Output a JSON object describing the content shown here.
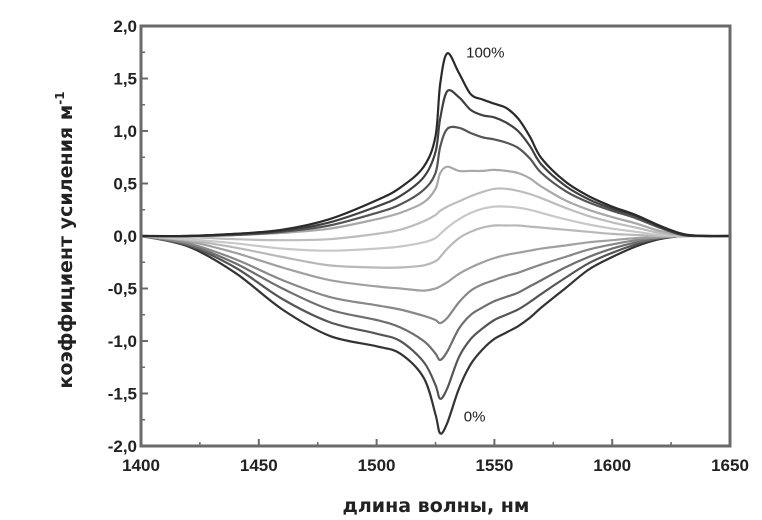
{
  "chart_data": {
    "type": "line",
    "xlabel": "длина волны,  нм",
    "ylabel": "коэффициент  усиления  м",
    "ylabel_sup": "-1",
    "xlim": [
      1400,
      1650
    ],
    "ylim": [
      -2.0,
      2.0
    ],
    "x_ticks": [
      1400,
      1450,
      1500,
      1550,
      1600,
      1650
    ],
    "y_ticks": [
      2.0,
      1.5,
      1.0,
      0.5,
      0.0,
      -0.5,
      -1.0,
      -1.5,
      -2.0
    ],
    "x_tick_labels": [
      "1400",
      "1450",
      "1500",
      "1550",
      "1600",
      "1650"
    ],
    "y_tick_labels": [
      "2,0",
      "1,5",
      "1,0",
      "0,5",
      "0,0",
      "-0,5",
      "-1,0",
      "-1,5",
      "-2,0"
    ],
    "grid": false,
    "annotations": [
      {
        "text": "100%",
        "x": 1538,
        "y": 1.75
      },
      {
        "text": "0%",
        "x": 1537,
        "y": -1.72
      }
    ],
    "x": [
      1400,
      1420,
      1440,
      1460,
      1480,
      1500,
      1510,
      1520,
      1525,
      1527,
      1530,
      1535,
      1540,
      1545,
      1550,
      1555,
      1560,
      1565,
      1570,
      1580,
      1590,
      1600,
      1610,
      1620,
      1630,
      1640,
      1650
    ],
    "series": [
      {
        "color": "#333333",
        "values": [
          0.0,
          -0.1,
          -0.35,
          -0.7,
          -0.95,
          -1.05,
          -1.12,
          -1.35,
          -1.7,
          -1.88,
          -1.78,
          -1.45,
          -1.22,
          -1.08,
          -0.98,
          -0.92,
          -0.86,
          -0.78,
          -0.68,
          -0.5,
          -0.32,
          -0.2,
          -0.1,
          -0.03,
          0.0,
          0.0,
          0.0
        ]
      },
      {
        "color": "#555555",
        "values": [
          0.0,
          -0.09,
          -0.3,
          -0.6,
          -0.82,
          -0.93,
          -1.0,
          -1.2,
          -1.42,
          -1.55,
          -1.45,
          -1.15,
          -0.98,
          -0.88,
          -0.8,
          -0.75,
          -0.7,
          -0.63,
          -0.55,
          -0.4,
          -0.26,
          -0.16,
          -0.08,
          -0.02,
          0.0,
          0.0,
          0.0
        ]
      },
      {
        "color": "#6e6e6e",
        "values": [
          0.0,
          -0.08,
          -0.26,
          -0.5,
          -0.7,
          -0.8,
          -0.87,
          -1.0,
          -1.12,
          -1.18,
          -1.1,
          -0.88,
          -0.75,
          -0.68,
          -0.62,
          -0.58,
          -0.54,
          -0.48,
          -0.42,
          -0.3,
          -0.2,
          -0.12,
          -0.06,
          -0.02,
          0.0,
          0.0,
          0.0
        ]
      },
      {
        "color": "#888888",
        "values": [
          0.0,
          -0.07,
          -0.22,
          -0.42,
          -0.58,
          -0.66,
          -0.7,
          -0.76,
          -0.8,
          -0.83,
          -0.78,
          -0.63,
          -0.52,
          -0.46,
          -0.42,
          -0.38,
          -0.35,
          -0.31,
          -0.27,
          -0.2,
          -0.13,
          -0.08,
          -0.04,
          -0.01,
          0.0,
          0.0,
          0.0
        ]
      },
      {
        "color": "#a0a0a0",
        "values": [
          0.0,
          -0.05,
          -0.16,
          -0.3,
          -0.42,
          -0.48,
          -0.5,
          -0.52,
          -0.5,
          -0.48,
          -0.44,
          -0.36,
          -0.3,
          -0.25,
          -0.21,
          -0.18,
          -0.16,
          -0.14,
          -0.12,
          -0.09,
          -0.06,
          -0.04,
          -0.02,
          -0.01,
          0.0,
          0.0,
          0.0
        ]
      },
      {
        "color": "#b8b8b8",
        "values": [
          0.0,
          -0.04,
          -0.11,
          -0.2,
          -0.28,
          -0.3,
          -0.3,
          -0.28,
          -0.24,
          -0.2,
          -0.12,
          -0.02,
          0.04,
          0.08,
          0.1,
          0.1,
          0.1,
          0.09,
          0.08,
          0.06,
          0.04,
          0.02,
          0.01,
          0.0,
          0.0,
          0.0,
          0.0
        ]
      },
      {
        "color": "#c8c8c8",
        "values": [
          0.0,
          -0.03,
          -0.07,
          -0.12,
          -0.14,
          -0.12,
          -0.1,
          -0.06,
          -0.02,
          0.02,
          0.08,
          0.16,
          0.22,
          0.26,
          0.28,
          0.28,
          0.27,
          0.25,
          0.22,
          0.16,
          0.11,
          0.07,
          0.04,
          0.01,
          0.0,
          0.0,
          0.0
        ]
      },
      {
        "color": "#bdbdbd",
        "values": [
          0.0,
          -0.01,
          -0.03,
          -0.04,
          -0.03,
          0.02,
          0.06,
          0.14,
          0.2,
          0.24,
          0.28,
          0.33,
          0.38,
          0.42,
          0.45,
          0.45,
          0.43,
          0.4,
          0.36,
          0.27,
          0.19,
          0.13,
          0.08,
          0.03,
          0.0,
          0.0,
          0.0
        ]
      },
      {
        "color": "#a8a8a8",
        "values": [
          0.0,
          0.0,
          0.01,
          0.03,
          0.07,
          0.16,
          0.22,
          0.32,
          0.45,
          0.6,
          0.66,
          0.62,
          0.62,
          0.62,
          0.63,
          0.62,
          0.6,
          0.55,
          0.47,
          0.34,
          0.25,
          0.18,
          0.12,
          0.05,
          0.01,
          0.0,
          0.0
        ]
      },
      {
        "color": "#555555",
        "values": [
          0.0,
          0.0,
          0.01,
          0.04,
          0.1,
          0.22,
          0.3,
          0.44,
          0.6,
          0.85,
          1.02,
          1.03,
          0.98,
          0.94,
          0.92,
          0.89,
          0.84,
          0.74,
          0.6,
          0.43,
          0.32,
          0.24,
          0.17,
          0.08,
          0.01,
          0.0,
          0.0
        ]
      },
      {
        "color": "#404040",
        "values": [
          0.0,
          0.0,
          0.02,
          0.05,
          0.13,
          0.28,
          0.38,
          0.56,
          0.8,
          1.12,
          1.38,
          1.32,
          1.2,
          1.15,
          1.13,
          1.08,
          1.0,
          0.86,
          0.68,
          0.48,
          0.35,
          0.26,
          0.19,
          0.09,
          0.01,
          0.0,
          0.0
        ]
      },
      {
        "color": "#2a2a2a",
        "values": [
          0.0,
          0.0,
          0.02,
          0.06,
          0.16,
          0.34,
          0.46,
          0.66,
          0.95,
          1.45,
          1.74,
          1.55,
          1.35,
          1.3,
          1.26,
          1.22,
          1.12,
          0.95,
          0.74,
          0.52,
          0.38,
          0.28,
          0.2,
          0.1,
          0.02,
          0.0,
          0.0
        ]
      }
    ]
  }
}
